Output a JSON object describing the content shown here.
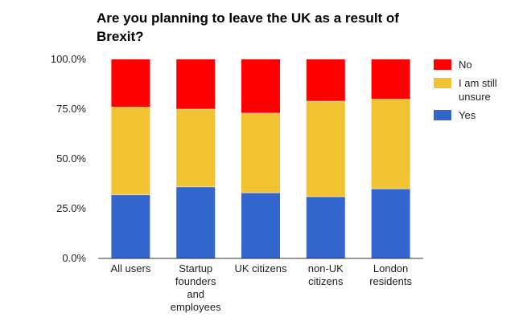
{
  "chart_data": {
    "type": "bar",
    "stacked": true,
    "title": "Are you planning to leave the UK as a result of Brexit?",
    "categories": [
      [
        "All users"
      ],
      [
        "Startup",
        "founders",
        "and",
        "employees"
      ],
      [
        "UK citizens"
      ],
      [
        "non-UK",
        "citizens"
      ],
      [
        "London",
        "residents"
      ]
    ],
    "series": [
      {
        "name": "Yes",
        "color": "#3366cc",
        "values": [
          32,
          36,
          33,
          31,
          35
        ]
      },
      {
        "name": "I am still unsure",
        "legend_lines": [
          "I am still",
          "unsure"
        ],
        "color": "#f1c232",
        "values": [
          44,
          39,
          40,
          48,
          45
        ]
      },
      {
        "name": "No",
        "color": "#ff0000",
        "values": [
          24,
          25,
          27,
          21,
          20
        ]
      }
    ],
    "ylim": [
      0,
      100
    ],
    "yticks": [
      0,
      25,
      50,
      75,
      100
    ],
    "ytick_labels": [
      "0.0%",
      "25.0%",
      "50.0%",
      "75.0%",
      "100.0%"
    ],
    "grid": false,
    "legend_position": "right"
  }
}
